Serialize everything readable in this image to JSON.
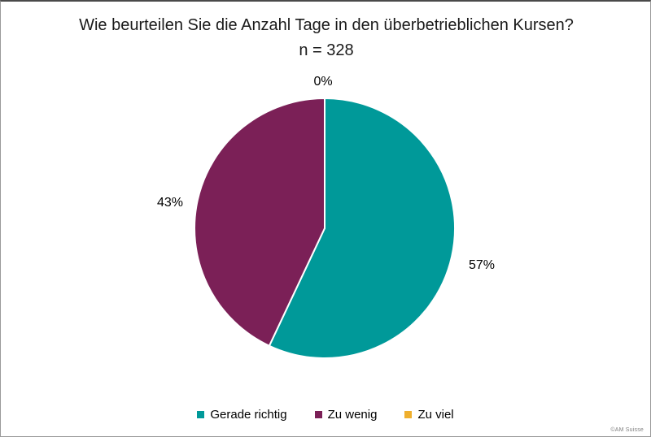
{
  "chart_data": {
    "type": "pie",
    "title": "Wie beurteilen Sie die Anzahl Tage in den überbetrieblichen Kursen? n = 328",
    "n": 328,
    "categories": [
      "Gerade richtig",
      "Zu wenig",
      "Zu viel"
    ],
    "values": [
      57,
      43,
      0
    ],
    "unit": "%",
    "point_labels": [
      "57%",
      "43%",
      "0%"
    ],
    "colors": [
      "#009999",
      "#7B2057",
      "#EFAF2D"
    ],
    "slice_border_color": "#ffffff",
    "start_angle_deg": 0,
    "direction": "clockwise",
    "legend_position": "bottom"
  },
  "footer": {
    "credit": "©AM Suisse"
  }
}
